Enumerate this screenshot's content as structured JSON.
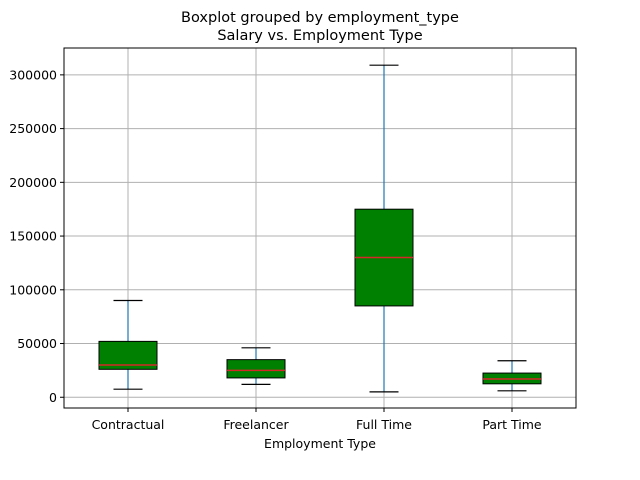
{
  "chart_data": {
    "type": "box",
    "suptitle": "Boxplot grouped by employment_type",
    "title": "Salary vs. Employment Type",
    "xlabel": "Employment Type",
    "ylabel": "",
    "categories": [
      "Contractual",
      "Freelancer",
      "Full Time",
      "Part Time"
    ],
    "boxes": [
      {
        "category": "Contractual",
        "whisker_low": 7500,
        "q1": 26000,
        "median": 30000,
        "q3": 52000,
        "whisker_high": 90000
      },
      {
        "category": "Freelancer",
        "whisker_low": 12000,
        "q1": 18000,
        "median": 25000,
        "q3": 35000,
        "whisker_high": 46000
      },
      {
        "category": "Full Time",
        "whisker_low": 5000,
        "q1": 85000,
        "median": 130000,
        "q3": 175000,
        "whisker_high": 309000
      },
      {
        "category": "Part Time",
        "whisker_low": 6000,
        "q1": 12500,
        "median": 17000,
        "q3": 22500,
        "whisker_high": 34000
      }
    ],
    "yticks": [
      0,
      50000,
      100000,
      150000,
      200000,
      250000,
      300000
    ],
    "ytick_labels": [
      "0",
      "50000",
      "100000",
      "150000",
      "200000",
      "250000",
      "300000"
    ],
    "ylim": [
      -10000,
      325000
    ],
    "grid": true,
    "colors": {
      "box_fill": "#008000",
      "box_edge": "#000000",
      "median": "#d62728",
      "whisker": "#1f77b4",
      "cap": "#000000",
      "grid": "#b0b0b0"
    }
  }
}
